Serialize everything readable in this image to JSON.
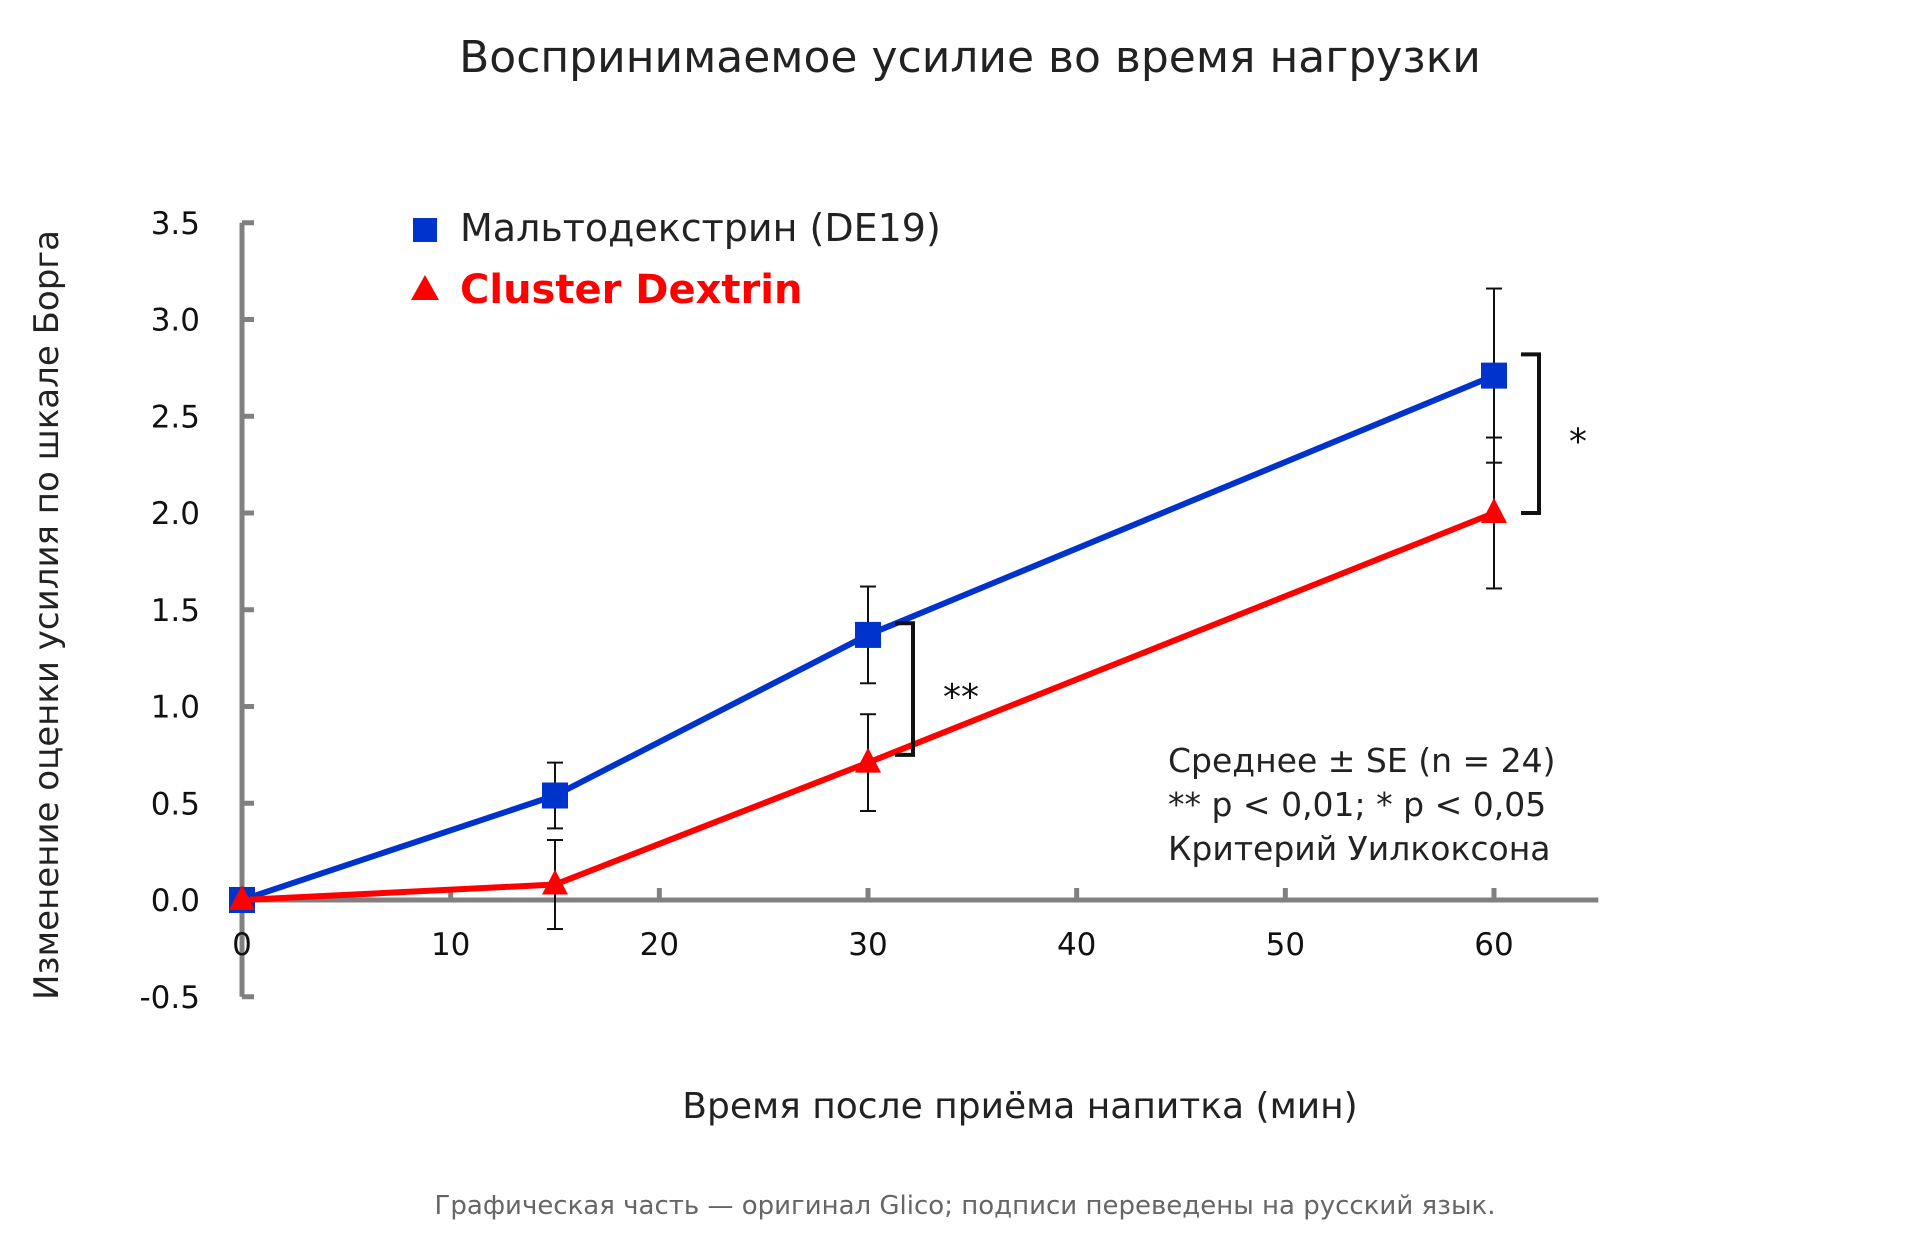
{
  "chart_data": {
    "type": "line",
    "title": "Воспринимаемое усилие во время нагрузки",
    "xlabel": "Время после приёма напитка (мин)",
    "ylabel": "Изменение оценки усилия по шкале Борга",
    "xlim": [
      0,
      65
    ],
    "ylim": [
      -0.5,
      3.5
    ],
    "x_ticks": [
      "0",
      "10",
      "20",
      "30",
      "40",
      "50",
      "60"
    ],
    "x_tick_values": [
      0,
      10,
      20,
      30,
      40,
      50,
      60
    ],
    "y_ticks": [
      "-0.5",
      "0.0",
      "0.5",
      "1.0",
      "1.5",
      "2.0",
      "2.5",
      "3.0",
      "3.5"
    ],
    "y_tick_values": [
      -0.5,
      0,
      0.5,
      1.0,
      1.5,
      2.0,
      2.5,
      3.0,
      3.5
    ],
    "grid": false,
    "legend_position": "top-left",
    "series": [
      {
        "name": "Мальтодекстрин (DE19)",
        "color": "#0033cc",
        "marker": "square",
        "x": [
          0,
          15,
          30,
          60
        ],
        "y": [
          0,
          0.54,
          1.37,
          2.71
        ],
        "se": [
          0,
          0.17,
          0.25,
          0.45
        ]
      },
      {
        "name": "Cluster Dextrin",
        "color": "#ff0000",
        "marker": "triangle",
        "x": [
          0,
          15,
          30,
          60
        ],
        "y": [
          0,
          0.08,
          0.71,
          2.0
        ],
        "se": [
          0,
          0.23,
          0.25,
          0.39
        ]
      }
    ],
    "significance": [
      {
        "x": 30,
        "y_low": 0.75,
        "y_high": 1.43,
        "label": "**"
      },
      {
        "x": 60,
        "y_low": 2.0,
        "y_high": 2.82,
        "label": "*"
      }
    ],
    "annotation_lines": [
      "Среднее ± SE (n = 24)",
      "** p < 0,01; * p < 0,05",
      "Критерий Уилкоксона"
    ],
    "footnote": "Графическая часть — оригинал Glico; подписи переведены на русский язык."
  }
}
